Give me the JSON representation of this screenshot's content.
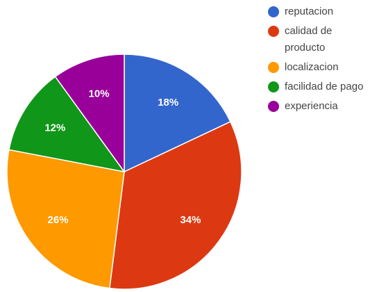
{
  "chart_data": {
    "type": "pie",
    "slices": [
      {
        "label": "reputacion",
        "value": 18,
        "value_label": "18%",
        "color": "#3366cc"
      },
      {
        "label": "calidad de producto",
        "value": 34,
        "value_label": "34%",
        "color": "#dc3912"
      },
      {
        "label": "localizacion",
        "value": 26,
        "value_label": "26%",
        "color": "#ff9900"
      },
      {
        "label": "facilidad de pago",
        "value": 12,
        "value_label": "12%",
        "color": "#109618"
      },
      {
        "label": "experiencia",
        "value": 10,
        "value_label": "10%",
        "color": "#990099"
      }
    ],
    "start": "top, clockwise",
    "legend": "right"
  }
}
